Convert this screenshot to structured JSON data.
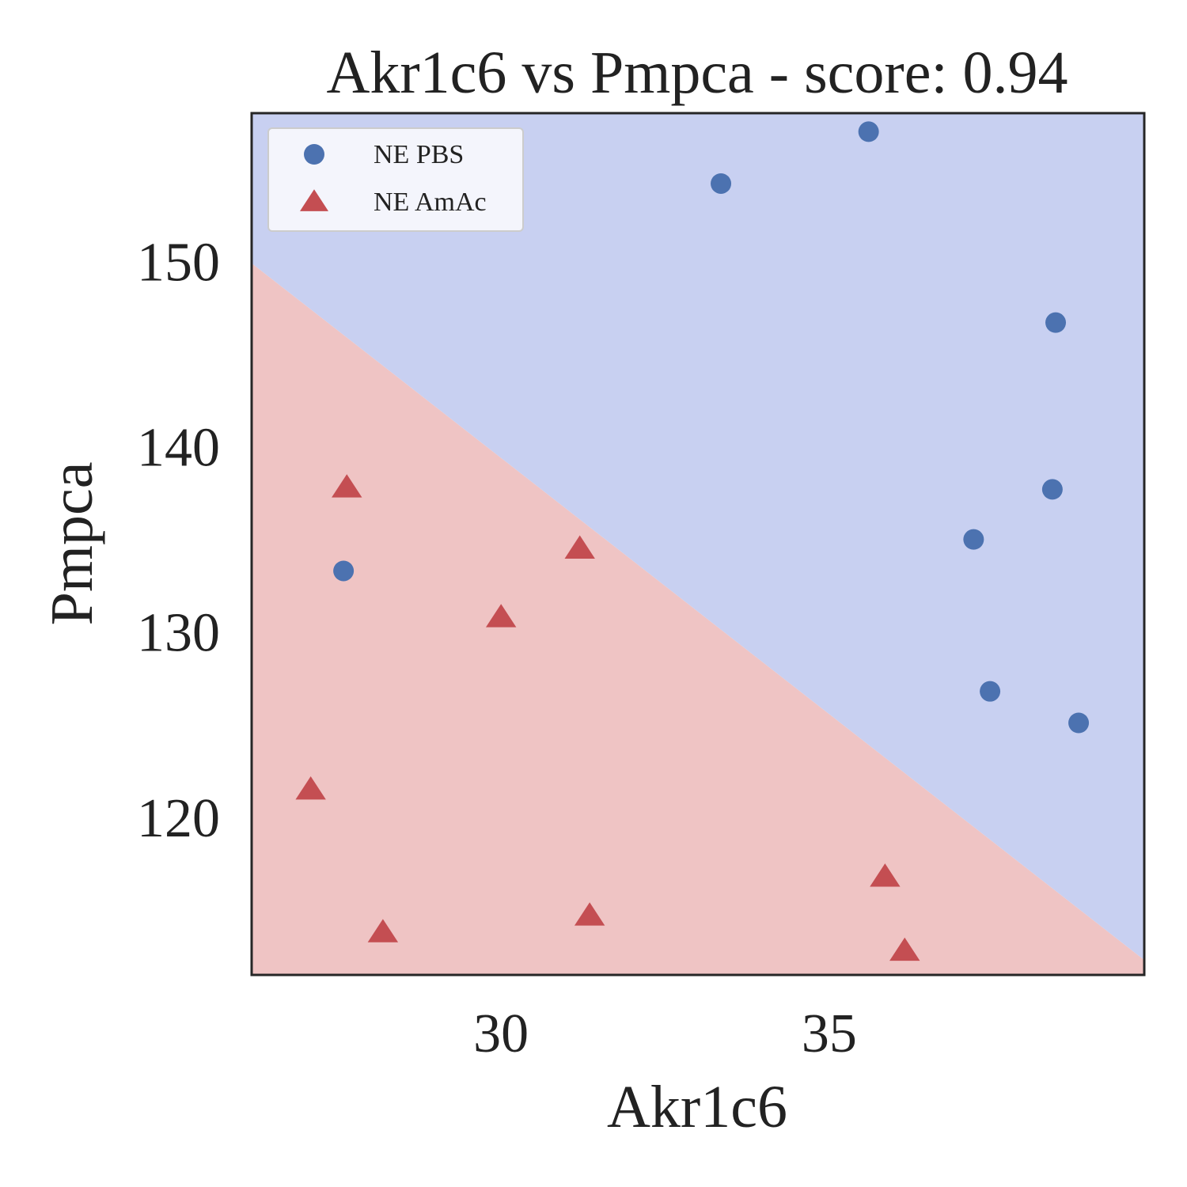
{
  "chart_data": {
    "type": "scatter",
    "title": "Akr1c6 vs Pmpca - score: 0.94",
    "xlabel": "Akr1c6",
    "ylabel": "Pmpca",
    "xlim": [
      26.2,
      39.8
    ],
    "ylim": [
      111.5,
      158.0
    ],
    "xticks": [
      30,
      35
    ],
    "yticks": [
      120,
      130,
      140,
      150
    ],
    "grid": false,
    "legend_position": "top-left",
    "decision_boundary": {
      "points": [
        [
          26.2,
          149.9
        ],
        [
          39.8,
          112.3
        ]
      ],
      "upper_region_color": "#c8d0f1",
      "lower_region_color": "#efc4c4"
    },
    "series": [
      {
        "name": "NE PBS",
        "marker": "circle",
        "color": "#4c72b0",
        "points": [
          [
            35.6,
            157.0
          ],
          [
            33.35,
            154.2
          ],
          [
            38.45,
            146.7
          ],
          [
            38.4,
            137.7
          ],
          [
            37.2,
            135.0
          ],
          [
            27.6,
            133.3
          ],
          [
            37.45,
            126.8
          ],
          [
            38.8,
            125.1
          ]
        ]
      },
      {
        "name": "NE AmAc",
        "marker": "triangle",
        "color": "#c44e52",
        "points": [
          [
            27.65,
            137.8
          ],
          [
            31.2,
            134.5
          ],
          [
            30.0,
            130.8
          ],
          [
            27.1,
            121.5
          ],
          [
            35.85,
            116.8
          ],
          [
            31.35,
            114.7
          ],
          [
            28.2,
            113.8
          ],
          [
            36.15,
            112.8
          ]
        ]
      }
    ]
  }
}
